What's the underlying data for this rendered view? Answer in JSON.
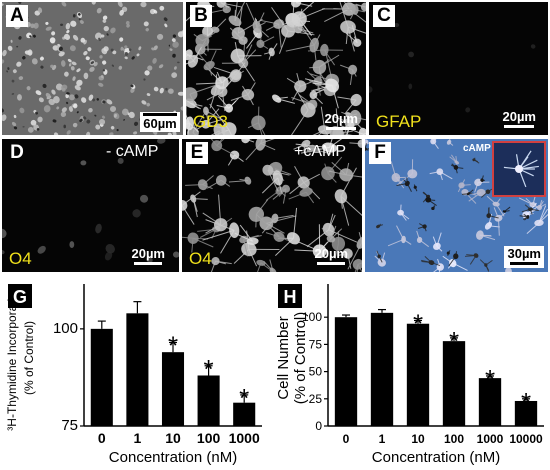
{
  "panels": {
    "A": {
      "letter": "A",
      "scale": "60µm"
    },
    "B": {
      "letter": "B",
      "stain": "GD3",
      "scale": "20µm"
    },
    "C": {
      "letter": "C",
      "stain": "GFAP",
      "scale": "20µm"
    },
    "D": {
      "letter": "D",
      "stain": "O4",
      "condition": "- cAMP",
      "scale": "20µm"
    },
    "E": {
      "letter": "E",
      "stain": "O4",
      "condition": "+cAMP",
      "scale": "20µm"
    },
    "F": {
      "letter": "F",
      "inset_label": "cAMP",
      "scale": "30µm"
    }
  },
  "colors": {
    "stain_label": "#f0e11c",
    "bars": "#000000",
    "phase_contrast_bg": "#4a78b8",
    "inset_border": "#d04040"
  },
  "chart_data": [
    {
      "panel": "G",
      "type": "bar",
      "categories": [
        "0",
        "1",
        "10",
        "100",
        "1000"
      ],
      "values": [
        100,
        104,
        94,
        88,
        81
      ],
      "errors": [
        2,
        3,
        2.5,
        2.5,
        2
      ],
      "significant": [
        false,
        false,
        true,
        true,
        true
      ],
      "marker": "*",
      "xlabel": "Concentration (nM)",
      "ylabel_line1": "³H-Thymidine Incorporation",
      "ylabel_line2": "(% of Control)",
      "ylim": [
        75,
        110
      ],
      "yticks": [
        "75",
        "100"
      ],
      "ytick_values": [
        75,
        100
      ]
    },
    {
      "panel": "H",
      "type": "bar",
      "categories": [
        "0",
        "1",
        "10",
        "100",
        "1000",
        "10000"
      ],
      "values": [
        100,
        104,
        94,
        78,
        44,
        23
      ],
      "errors": [
        2,
        3,
        3,
        3,
        2,
        2
      ],
      "significant": [
        false,
        false,
        true,
        true,
        true,
        true
      ],
      "marker": "*",
      "xlabel": "Concentration (nM)",
      "ylabel_line1": "Cell Number",
      "ylabel_line2": "(% of Control)",
      "ylim": [
        0,
        125
      ],
      "yticks": [
        "0",
        "25",
        "50",
        "75",
        "100"
      ],
      "ytick_values": [
        0,
        25,
        50,
        75,
        100
      ]
    }
  ]
}
